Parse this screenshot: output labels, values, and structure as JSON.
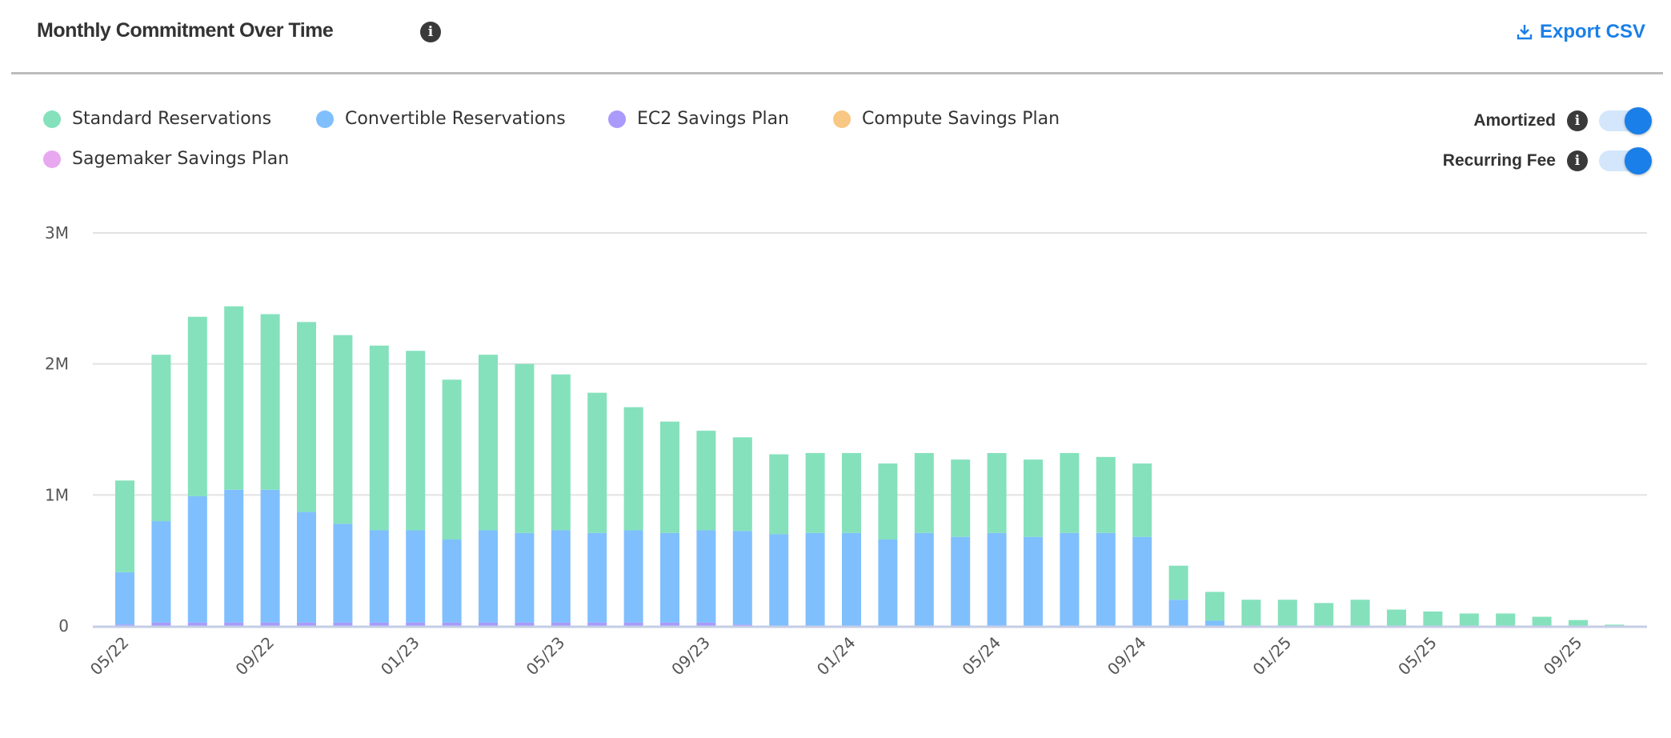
{
  "header": {
    "title": "Monthly Commitment Over Time",
    "info_icon": "info-icon",
    "export_label": "Export CSV",
    "export_icon": "download-icon"
  },
  "toggles": [
    {
      "label": "Amortized",
      "on": true
    },
    {
      "label": "Recurring Fee",
      "on": true
    }
  ],
  "colors": {
    "accent": "#1a7fe8"
  },
  "chart_data": {
    "type": "bar",
    "stacked": true,
    "title": "",
    "xlabel": "",
    "ylabel": "",
    "ylim": [
      0,
      3000000
    ],
    "yticks": [
      {
        "v": 0,
        "label": "0"
      },
      {
        "v": 1000000,
        "label": "1M"
      },
      {
        "v": 2000000,
        "label": "2M"
      },
      {
        "v": 3000000,
        "label": "3M"
      }
    ],
    "grid": true,
    "legend_position": "top-left",
    "categories": [
      "05/22",
      "06/22",
      "07/22",
      "08/22",
      "09/22",
      "10/22",
      "11/22",
      "12/22",
      "01/23",
      "02/23",
      "03/23",
      "04/23",
      "05/23",
      "06/23",
      "07/23",
      "08/23",
      "09/23",
      "10/23",
      "11/23",
      "12/23",
      "01/24",
      "02/24",
      "03/24",
      "04/24",
      "05/24",
      "06/24",
      "07/24",
      "08/24",
      "09/24",
      "10/24",
      "11/24",
      "12/24",
      "01/25",
      "02/25",
      "03/25",
      "04/25",
      "05/25",
      "06/25",
      "07/25",
      "08/25",
      "09/25",
      "10/25"
    ],
    "xtick_labels": [
      "05/22",
      "09/22",
      "01/23",
      "05/23",
      "09/23",
      "01/24",
      "05/24",
      "09/24",
      "01/25",
      "05/25",
      "09/25"
    ],
    "series": [
      {
        "name": "EC2 Savings Plan",
        "color": "#a99afc",
        "values": [
          10000,
          25000,
          25000,
          25000,
          25000,
          25000,
          25000,
          25000,
          25000,
          25000,
          25000,
          25000,
          25000,
          25000,
          25000,
          25000,
          25000,
          10000,
          0,
          0,
          0,
          0,
          0,
          0,
          0,
          0,
          0,
          0,
          0,
          0,
          0,
          0,
          0,
          0,
          0,
          0,
          0,
          0,
          0,
          0,
          0,
          0
        ]
      },
      {
        "name": "Convertible Reservations",
        "color": "#80bffd",
        "values": [
          400000,
          775000,
          965000,
          1015000,
          1015000,
          845000,
          755000,
          705000,
          705000,
          635000,
          705000,
          685000,
          705000,
          685000,
          705000,
          685000,
          705000,
          715000,
          700000,
          710000,
          710000,
          660000,
          710000,
          680000,
          710000,
          680000,
          710000,
          710000,
          680000,
          200000,
          40000,
          0,
          0,
          0,
          0,
          0,
          0,
          0,
          0,
          0,
          0,
          0
        ]
      },
      {
        "name": "Compute Savings Plan",
        "color": "#f9c784",
        "values": [
          0,
          0,
          0,
          0,
          0,
          0,
          0,
          0,
          0,
          0,
          0,
          0,
          0,
          0,
          0,
          0,
          0,
          0,
          0,
          0,
          0,
          0,
          0,
          0,
          0,
          0,
          0,
          0,
          0,
          0,
          0,
          0,
          0,
          0,
          0,
          0,
          0,
          0,
          0,
          0,
          0,
          0
        ]
      },
      {
        "name": "Sagemaker Savings Plan",
        "color": "#e8a8f0",
        "values": [
          0,
          0,
          0,
          0,
          0,
          0,
          0,
          0,
          0,
          0,
          0,
          0,
          0,
          0,
          0,
          0,
          0,
          0,
          0,
          0,
          0,
          0,
          0,
          0,
          0,
          0,
          0,
          0,
          0,
          0,
          0,
          0,
          0,
          0,
          0,
          0,
          0,
          0,
          0,
          0,
          0,
          0
        ]
      },
      {
        "name": "Standard Reservations",
        "color": "#84e1bc",
        "values": [
          700000,
          1270000,
          1370000,
          1400000,
          1340000,
          1450000,
          1440000,
          1410000,
          1370000,
          1220000,
          1340000,
          1290000,
          1190000,
          1070000,
          940000,
          850000,
          760000,
          715000,
          610000,
          610000,
          610000,
          580000,
          610000,
          590000,
          610000,
          590000,
          610000,
          580000,
          560000,
          260000,
          220000,
          200000,
          200000,
          175000,
          200000,
          125000,
          110000,
          95000,
          95000,
          70000,
          45000,
          10000
        ]
      }
    ],
    "legend": [
      {
        "name": "Standard Reservations",
        "color": "#84e1bc"
      },
      {
        "name": "Convertible Reservations",
        "color": "#80bffd"
      },
      {
        "name": "EC2 Savings Plan",
        "color": "#a99afc"
      },
      {
        "name": "Compute Savings Plan",
        "color": "#f9c784"
      },
      {
        "name": "Sagemaker Savings Plan",
        "color": "#e8a8f0"
      }
    ]
  }
}
